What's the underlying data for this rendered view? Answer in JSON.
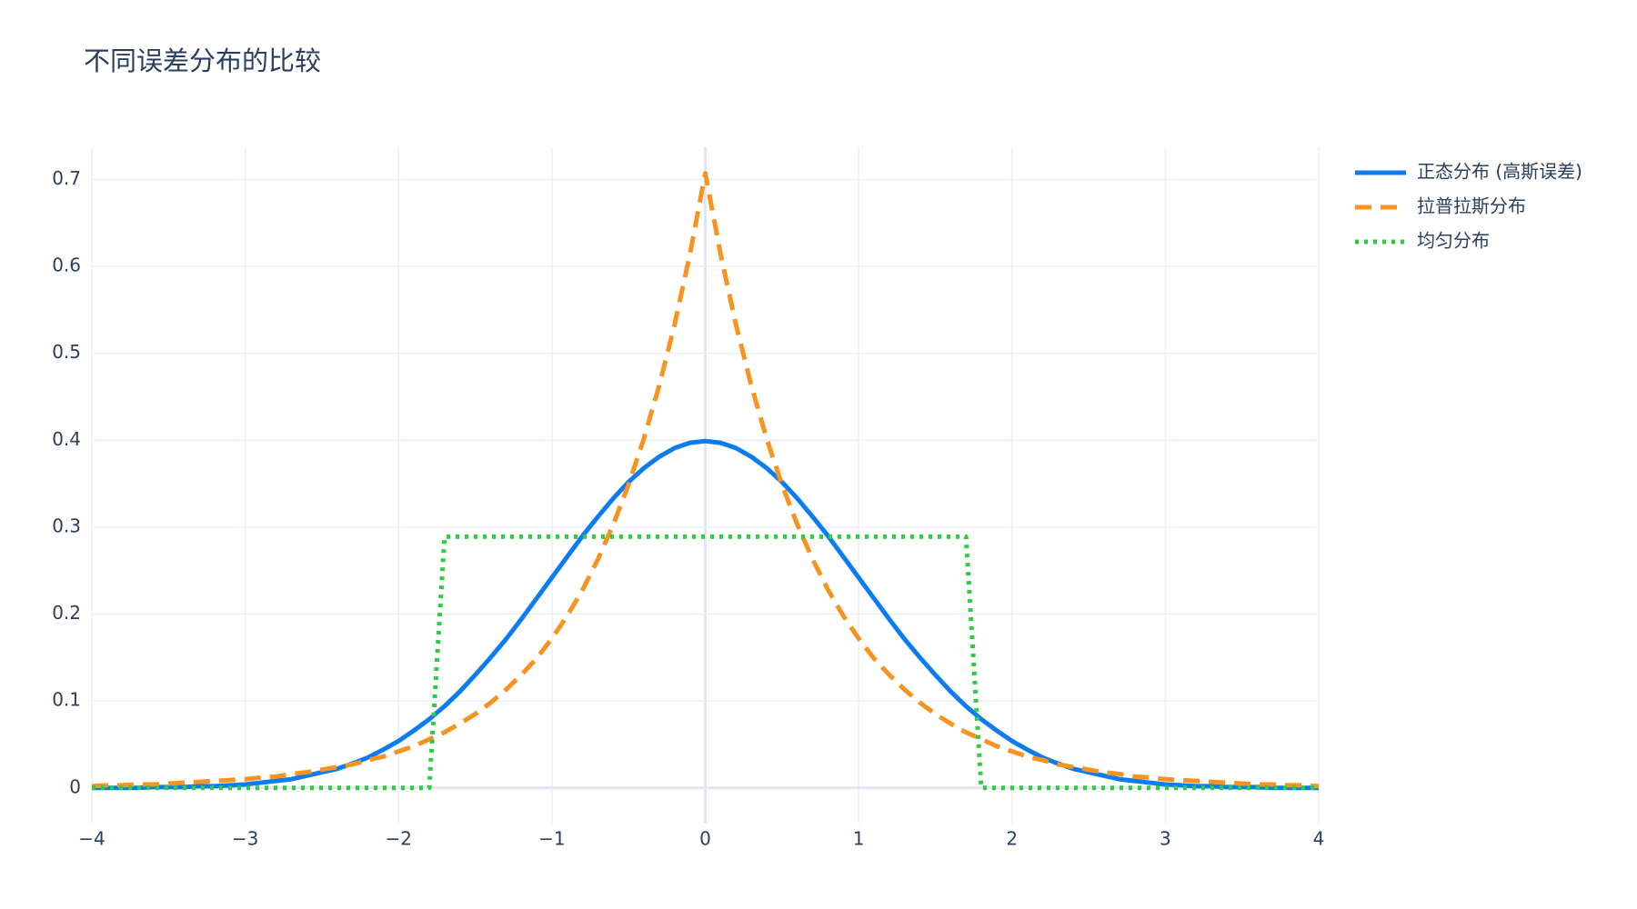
{
  "chart_data": {
    "type": "line",
    "title": "不同误差分布的比较",
    "x": [
      -4,
      -3.9,
      -3.8,
      -3.7,
      -3.6,
      -3.5,
      -3.4,
      -3.3,
      -3.2,
      -3.1,
      -3,
      -2.9,
      -2.8,
      -2.7,
      -2.6,
      -2.5,
      -2.4,
      -2.3,
      -2.2,
      -2.1,
      -2,
      -1.9,
      -1.8,
      -1.7,
      -1.6,
      -1.5,
      -1.4,
      -1.3,
      -1.2,
      -1.1,
      -1,
      -0.9,
      -0.8,
      -0.7,
      -0.6,
      -0.5,
      -0.4,
      -0.3,
      -0.2,
      -0.1,
      0,
      0.1,
      0.2,
      0.3,
      0.4,
      0.5,
      0.6,
      0.7,
      0.8,
      0.9,
      1,
      1.1,
      1.2,
      1.3,
      1.4,
      1.5,
      1.6,
      1.7,
      1.8,
      1.9,
      2,
      2.1,
      2.2,
      2.3,
      2.4,
      2.5,
      2.6,
      2.7,
      2.8,
      2.9,
      3,
      3.1,
      3.2,
      3.3,
      3.4,
      3.5,
      3.6,
      3.7,
      3.8,
      3.9,
      4
    ],
    "series": [
      {
        "name": "正态分布 (高斯误差)",
        "color": "#0d7bf2",
        "dash": "solid",
        "values": [
          0,
          0,
          0,
          0,
          0.001,
          0.001,
          0.001,
          0.002,
          0.002,
          0.003,
          0.004,
          0.006,
          0.008,
          0.01,
          0.014,
          0.018,
          0.022,
          0.028,
          0.035,
          0.044,
          0.054,
          0.066,
          0.079,
          0.094,
          0.111,
          0.13,
          0.15,
          0.171,
          0.194,
          0.218,
          0.242,
          0.266,
          0.29,
          0.312,
          0.333,
          0.352,
          0.368,
          0.381,
          0.391,
          0.397,
          0.399,
          0.397,
          0.391,
          0.381,
          0.368,
          0.352,
          0.333,
          0.312,
          0.29,
          0.266,
          0.242,
          0.218,
          0.194,
          0.171,
          0.15,
          0.13,
          0.111,
          0.094,
          0.079,
          0.066,
          0.054,
          0.044,
          0.035,
          0.028,
          0.022,
          0.018,
          0.014,
          0.01,
          0.008,
          0.006,
          0.004,
          0.003,
          0.002,
          0.002,
          0.001,
          0.001,
          0.001,
          0,
          0,
          0,
          0
        ]
      },
      {
        "name": "拉普拉斯分布",
        "color": "#f7931e",
        "dash": "dash",
        "values": [
          0.002,
          0.003,
          0.003,
          0.004,
          0.004,
          0.005,
          0.006,
          0.007,
          0.008,
          0.009,
          0.01,
          0.012,
          0.013,
          0.016,
          0.018,
          0.021,
          0.024,
          0.027,
          0.032,
          0.036,
          0.042,
          0.048,
          0.056,
          0.064,
          0.074,
          0.085,
          0.098,
          0.113,
          0.13,
          0.149,
          0.172,
          0.198,
          0.228,
          0.263,
          0.303,
          0.349,
          0.402,
          0.463,
          0.533,
          0.614,
          0.707,
          0.614,
          0.533,
          0.463,
          0.402,
          0.349,
          0.303,
          0.263,
          0.228,
          0.198,
          0.172,
          0.149,
          0.13,
          0.113,
          0.098,
          0.085,
          0.074,
          0.064,
          0.056,
          0.048,
          0.042,
          0.036,
          0.032,
          0.027,
          0.024,
          0.021,
          0.018,
          0.016,
          0.013,
          0.012,
          0.01,
          0.009,
          0.008,
          0.007,
          0.006,
          0.005,
          0.004,
          0.004,
          0.003,
          0.003,
          0.002
        ]
      },
      {
        "name": "均匀分布",
        "color": "#2ecc40",
        "dash": "dot",
        "values": [
          0,
          0,
          0,
          0,
          0,
          0,
          0,
          0,
          0,
          0,
          0,
          0,
          0,
          0,
          0,
          0,
          0,
          0,
          0,
          0,
          0,
          0,
          0,
          0.289,
          0.289,
          0.289,
          0.289,
          0.289,
          0.289,
          0.289,
          0.289,
          0.289,
          0.289,
          0.289,
          0.289,
          0.289,
          0.289,
          0.289,
          0.289,
          0.289,
          0.289,
          0.289,
          0.289,
          0.289,
          0.289,
          0.289,
          0.289,
          0.289,
          0.289,
          0.289,
          0.289,
          0.289,
          0.289,
          0.289,
          0.289,
          0.289,
          0.289,
          0.289,
          0,
          0,
          0,
          0,
          0,
          0,
          0,
          0,
          0,
          0,
          0,
          0,
          0,
          0,
          0,
          0,
          0,
          0,
          0,
          0,
          0,
          0,
          0
        ]
      }
    ],
    "xlim": [
      -4,
      4
    ],
    "xticks": [
      {
        "value": -4,
        "label": "−4"
      },
      {
        "value": -3,
        "label": "−3"
      },
      {
        "value": -2,
        "label": "−2"
      },
      {
        "value": -1,
        "label": "−1"
      },
      0,
      1,
      2,
      3,
      4
    ],
    "ylim": [
      -0.041,
      0.737
    ],
    "yticks": [
      0,
      0.1,
      0.2,
      0.3,
      0.4,
      0.5,
      0.6,
      0.7
    ],
    "grid": true,
    "legend": "right"
  }
}
